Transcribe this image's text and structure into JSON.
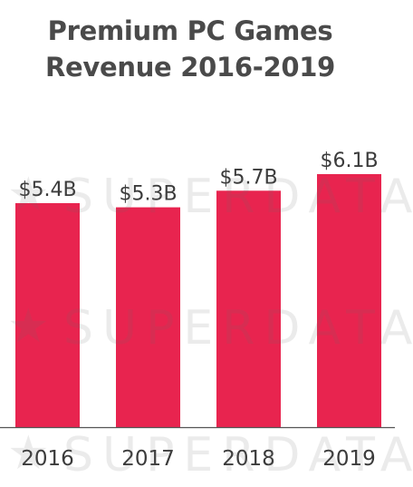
{
  "title_line1": "Premium PC Games",
  "title_line2": "Revenue 2016-2019",
  "watermark": "SUPERDATA",
  "colors": {
    "bar": "#e8244f",
    "text": "#3b3b3b",
    "axis": "#555555"
  },
  "chart_data": {
    "type": "bar",
    "title": "Premium PC Games Revenue 2016-2019",
    "categories": [
      "2016",
      "2017",
      "2018",
      "2019"
    ],
    "values": [
      5.4,
      5.3,
      5.7,
      6.1
    ],
    "value_labels": [
      "$5.4B",
      "$5.3B",
      "$5.7B",
      "$6.1B"
    ],
    "ylim": [
      0,
      6.1
    ],
    "grid": false,
    "legend": "none",
    "xlabel": "",
    "ylabel": ""
  }
}
